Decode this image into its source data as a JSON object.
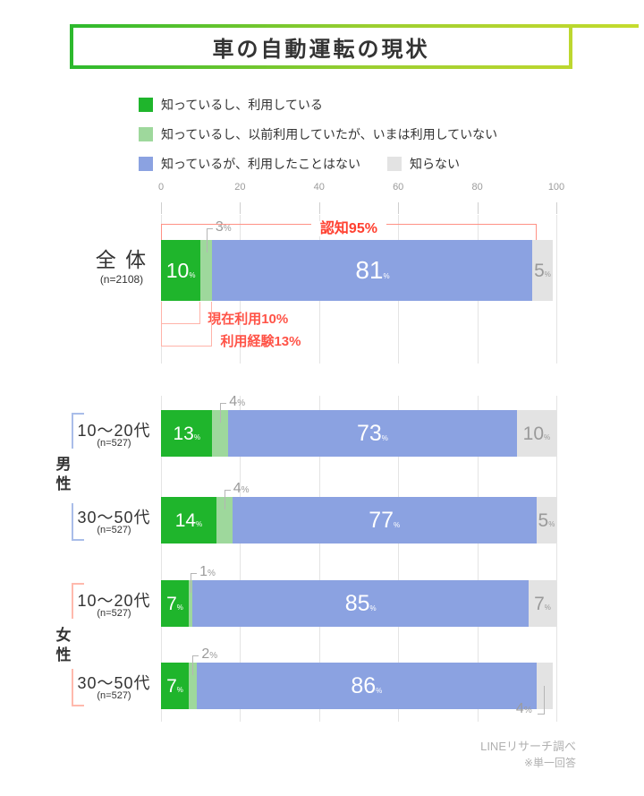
{
  "title": {
    "text": "車の自動運転の現状"
  },
  "legend": [
    {
      "label": "知っているし、利用している",
      "color": "#1fb52c"
    },
    {
      "label": "知っているし、以前利用していたが、いまは利用していない",
      "color": "#9ed89c"
    },
    {
      "label": "知っているが、利用したことはない",
      "color": "#8ba2e1"
    },
    {
      "label": "知らない",
      "color": "#e3e3e3"
    }
  ],
  "chart_data": {
    "type": "bar",
    "orientation": "horizontal",
    "stacked": true,
    "unit": "%",
    "title": "車の自動運転の現状",
    "xlim": [
      0,
      100
    ],
    "x_ticks": [
      0,
      20,
      40,
      60,
      80,
      100
    ],
    "grid": true,
    "legend_position": "top",
    "series": [
      "知っているし、利用している",
      "知っているし、以前利用していたが、いまは利用していない",
      "知っているが、利用したことはない",
      "知らない"
    ],
    "rows": [
      {
        "label": "全 体",
        "n": "(n=2108)",
        "group": null,
        "values": [
          10,
          3,
          81,
          5
        ]
      },
      {
        "label": "10〜20代",
        "n": "(n=527)",
        "group": "男性",
        "values": [
          13,
          4,
          73,
          10
        ]
      },
      {
        "label": "30〜50代",
        "n": "(n=527)",
        "group": "男性",
        "values": [
          14,
          4,
          77,
          5
        ]
      },
      {
        "label": "10〜20代",
        "n": "(n=527)",
        "group": "女性",
        "values": [
          7,
          1,
          85,
          7
        ]
      },
      {
        "label": "30〜50代",
        "n": "(n=527)",
        "group": "女性",
        "values": [
          7,
          2,
          86,
          4
        ]
      }
    ],
    "groups": [
      {
        "label": "男性",
        "color": "#a9bde9"
      },
      {
        "label": "女性",
        "color": "#ffb9ad"
      }
    ],
    "annotations": [
      {
        "text": "認知95%",
        "span": [
          0,
          95
        ]
      },
      {
        "text": "現在利用10%",
        "span": [
          0,
          10
        ]
      },
      {
        "text": "利用経験13%",
        "span": [
          0,
          13
        ]
      }
    ]
  },
  "colors": {
    "accent_red_text": "#ff4030",
    "accent_red_text2": "#ff5347",
    "bracket_red": "#ff9185",
    "bracket_red_light": "#ffb3a9",
    "connector_gray": "#b5b5b5",
    "gridline": "#e4e4e4",
    "male_bracket": "#a9bde9",
    "female_bracket": "#ffb9ad"
  },
  "footer": {
    "source": "LINEリサーチ調べ",
    "note": "※単一回答"
  }
}
